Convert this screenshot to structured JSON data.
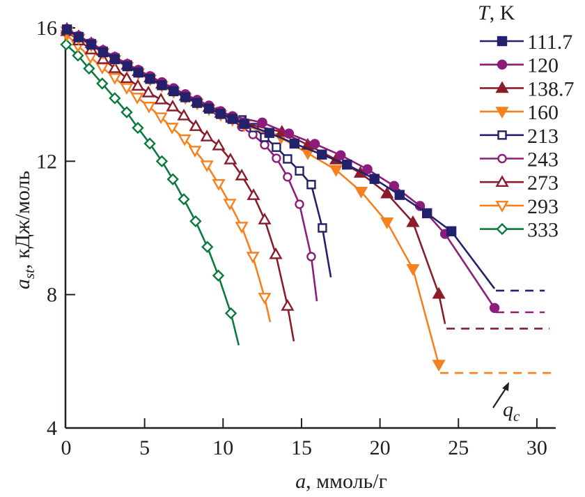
{
  "chart_data": {
    "type": "line",
    "title": "",
    "xlabel": "ммоль/г",
    "xlabel_var": "a",
    "ylabel": "кДж/моль",
    "ylabel_var": "a",
    "ylabel_sub": "st",
    "xlim": [
      0,
      31
    ],
    "ylim": [
      4,
      16
    ],
    "xticks": [
      0,
      5,
      10,
      15,
      20,
      25,
      30
    ],
    "yticks": [
      4,
      8,
      12,
      16
    ],
    "grid": false,
    "legend": {
      "title_var": "T",
      "title_unit": ", K",
      "placement": "top-right"
    },
    "annotation": {
      "label_var": "q",
      "label_sub": "c",
      "arrow": true
    },
    "series": [
      {
        "name": "111.7",
        "color": "#23206c",
        "marker": "square",
        "filled": true,
        "x": [
          0.05,
          0.8,
          1.6,
          2.35,
          3.1,
          3.9,
          4.6,
          5.35,
          6.1,
          6.85,
          7.6,
          8.35,
          9.1,
          9.85,
          10.6,
          11.35,
          12.95,
          14.55,
          16.3,
          17.9,
          19.65,
          21.25,
          23.0,
          24.55
        ],
        "y": [
          15.95,
          15.72,
          15.5,
          15.27,
          15.06,
          14.85,
          14.66,
          14.47,
          14.28,
          14.1,
          13.92,
          13.75,
          13.58,
          13.42,
          13.27,
          13.12,
          12.85,
          12.53,
          12.2,
          11.9,
          11.47,
          10.99,
          10.44,
          9.9
        ],
        "line_end": [
          27.3,
          8.18
        ],
        "dashed_y": 8.12,
        "dashed_to": 30.5
      },
      {
        "name": "120",
        "color": "#8c1d7b",
        "marker": "circle",
        "filled": true,
        "x": [
          0.05,
          0.8,
          1.6,
          2.35,
          3.1,
          3.9,
          4.6,
          5.35,
          6.1,
          6.85,
          7.6,
          8.35,
          9.1,
          9.85,
          10.6,
          12.5,
          14.2,
          15.85,
          17.5,
          19.2,
          20.9,
          22.55,
          24.15,
          27.3
        ],
        "y": [
          15.97,
          15.76,
          15.55,
          15.33,
          15.13,
          14.92,
          14.74,
          14.55,
          14.37,
          14.19,
          14.01,
          13.84,
          13.67,
          13.5,
          13.35,
          13.16,
          12.83,
          12.52,
          12.18,
          11.76,
          11.26,
          10.66,
          9.82,
          7.6
        ],
        "dashed_y": 7.47,
        "dashed_to": 30.5
      },
      {
        "name": "138.7",
        "color": "#8a1c2b",
        "marker": "triangle-up",
        "filled": true,
        "x": [
          0.05,
          0.8,
          1.6,
          2.35,
          3.1,
          3.9,
          4.6,
          5.35,
          6.1,
          6.85,
          7.6,
          8.35,
          9.1,
          9.85,
          10.6,
          11.35,
          13.75,
          15.4,
          17.2,
          18.75,
          20.45,
          22.1,
          23.75
        ],
        "y": [
          15.97,
          15.75,
          15.54,
          15.31,
          15.1,
          14.89,
          14.7,
          14.51,
          14.32,
          14.14,
          13.96,
          13.79,
          13.62,
          13.45,
          13.3,
          13.14,
          12.88,
          12.49,
          12.05,
          11.65,
          11.03,
          10.17,
          8.02
        ],
        "line_end": [
          24.15,
          7.12
        ],
        "dashed_y": 6.98,
        "dashed_to": 30.8
      },
      {
        "name": "160",
        "color": "#f7801e",
        "marker": "triangle-down",
        "filled": true,
        "x": [
          0.05,
          0.8,
          1.6,
          2.35,
          3.1,
          3.9,
          4.6,
          5.35,
          6.1,
          6.85,
          7.6,
          8.35,
          9.1,
          9.85,
          10.6,
          11.35,
          13.7,
          15.4,
          17.2,
          18.8,
          20.45,
          22.1,
          23.75
        ],
        "y": [
          15.9,
          15.68,
          15.47,
          15.25,
          15.04,
          14.83,
          14.64,
          14.45,
          14.26,
          14.08,
          13.9,
          13.73,
          13.56,
          13.39,
          13.24,
          13.08,
          12.7,
          12.24,
          11.74,
          11.09,
          10.17,
          8.77,
          5.9
        ],
        "dashed_y": 5.65,
        "dashed_to": 30.9
      },
      {
        "name": "213",
        "color": "#23206c",
        "marker": "square",
        "filled": false,
        "x": [
          0.05,
          0.8,
          1.6,
          2.35,
          3.1,
          3.9,
          4.6,
          5.35,
          6.1,
          6.85,
          7.6,
          8.35,
          9.1,
          9.85,
          10.45,
          11.2,
          11.98,
          12.65,
          13.4,
          14.11,
          14.87,
          15.62,
          16.33
        ],
        "y": [
          15.96,
          15.74,
          15.53,
          15.3,
          15.1,
          14.89,
          14.7,
          14.51,
          14.32,
          14.13,
          13.94,
          13.76,
          13.58,
          13.41,
          13.3,
          13.24,
          13.01,
          12.72,
          12.42,
          12.07,
          11.71,
          11.3,
          10.0
        ],
        "line_end": [
          16.87,
          8.52
        ]
      },
      {
        "name": "243",
        "color": "#8c1d7b",
        "marker": "circle",
        "filled": false,
        "x": [
          0.04,
          0.8,
          1.6,
          2.35,
          3.1,
          3.9,
          4.62,
          5.37,
          6.13,
          6.88,
          7.59,
          8.34,
          9.1,
          9.68,
          10.43,
          11.19,
          11.9,
          12.65,
          13.4,
          14.11,
          14.87,
          15.62
        ],
        "y": [
          15.96,
          15.75,
          15.54,
          15.31,
          15.12,
          14.89,
          14.72,
          14.53,
          14.33,
          14.14,
          13.95,
          13.76,
          13.6,
          13.49,
          13.28,
          13.03,
          12.8,
          12.49,
          12.09,
          11.53,
          10.71,
          9.14
        ],
        "line_end": [
          15.98,
          7.8
        ]
      },
      {
        "name": "273",
        "color": "#8a1c2b",
        "marker": "triangle-up",
        "filled": false,
        "x": [
          0.04,
          0.8,
          1.6,
          2.35,
          3.1,
          3.86,
          4.57,
          5.24,
          6.04,
          6.79,
          7.5,
          8.26,
          8.97,
          9.72,
          10.47,
          11.19,
          11.94,
          12.65,
          13.36,
          14.11
        ],
        "y": [
          15.9,
          15.62,
          15.35,
          15.06,
          14.79,
          14.49,
          14.26,
          14.06,
          13.85,
          13.64,
          13.37,
          13.05,
          12.74,
          12.47,
          12.05,
          11.57,
          10.98,
          10.25,
          9.21,
          7.66
        ],
        "line_end": [
          14.51,
          6.6
        ]
      },
      {
        "name": "293",
        "color": "#f7801e",
        "marker": "triangle-down",
        "filled": false,
        "x": [
          0.04,
          0.75,
          1.55,
          2.3,
          3.1,
          3.86,
          4.53,
          5.28,
          6.04,
          6.75,
          7.55,
          8.21,
          8.97,
          9.72,
          10.43,
          11.19,
          11.9,
          12.65
        ],
        "y": [
          15.79,
          15.46,
          15.12,
          14.81,
          14.5,
          14.2,
          13.91,
          13.64,
          13.32,
          13.01,
          12.66,
          12.32,
          11.88,
          11.32,
          10.73,
          10.04,
          9.14,
          7.91
        ],
        "line_end": [
          13.0,
          7.18
        ]
      },
      {
        "name": "333",
        "color": "#0b7a3e",
        "marker": "diamond",
        "filled": false,
        "x": [
          0.0,
          0.75,
          1.46,
          2.3,
          3.1,
          3.86,
          4.57,
          5.33,
          6.1,
          6.8,
          7.5,
          8.25,
          9.0,
          9.7,
          10.5
        ],
        "y": [
          15.5,
          15.17,
          14.78,
          14.33,
          13.89,
          13.47,
          13.0,
          12.53,
          12.0,
          11.46,
          10.86,
          10.2,
          9.43,
          8.57,
          7.44
        ],
        "line_end": [
          11.0,
          6.48
        ]
      }
    ]
  }
}
